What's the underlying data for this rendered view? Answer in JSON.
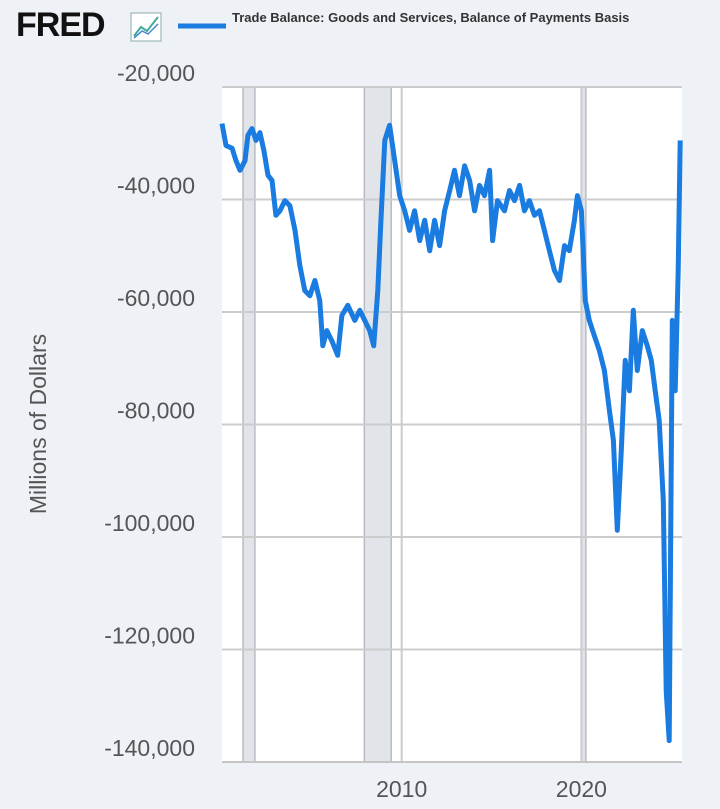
{
  "logo": "FRED",
  "chart_data": {
    "type": "line",
    "y_label": "Millions of Dollars",
    "series": [
      {
        "name": "Trade Balance: Goods and Services, Balance of Payments Basis",
        "color": "#1a7be0",
        "x": [
          2000.0,
          2000.22,
          2000.56,
          2000.78,
          2001.0,
          2001.28,
          2001.44,
          2001.67,
          2001.89,
          2002.11,
          2002.33,
          2002.56,
          2002.78,
          2003.0,
          2003.22,
          2003.5,
          2003.78,
          2004.06,
          2004.33,
          2004.61,
          2004.89,
          2005.17,
          2005.44,
          2005.61,
          2005.83,
          2006.11,
          2006.44,
          2006.67,
          2007.0,
          2007.39,
          2007.67,
          2007.94,
          2008.22,
          2008.44,
          2008.67,
          2008.83,
          2009.06,
          2009.33,
          2009.61,
          2009.89,
          2010.17,
          2010.44,
          2010.72,
          2011.0,
          2011.28,
          2011.56,
          2011.83,
          2012.11,
          2012.39,
          2012.67,
          2012.94,
          2013.22,
          2013.5,
          2013.78,
          2014.06,
          2014.33,
          2014.61,
          2014.89,
          2015.06,
          2015.33,
          2015.72,
          2016.0,
          2016.28,
          2016.56,
          2016.83,
          2017.11,
          2017.39,
          2017.67,
          2017.94,
          2018.22,
          2018.5,
          2018.78,
          2019.06,
          2019.33,
          2019.61,
          2019.78,
          2020.0,
          2020.22,
          2020.44,
          2020.72,
          2021.0,
          2021.28,
          2021.56,
          2021.78,
          2022.0,
          2022.22,
          2022.44,
          2022.67,
          2022.89,
          2023.11,
          2023.39,
          2023.67,
          2023.89,
          2024.11,
          2024.33,
          2024.56,
          2024.72,
          2024.89,
          2025.06,
          2025.22,
          2025.39,
          2025.5
        ],
        "values": [
          -26500,
          -30400,
          -30900,
          -33100,
          -34800,
          -33100,
          -28600,
          -27400,
          -29500,
          -28100,
          -31300,
          -35700,
          -36600,
          -42800,
          -42000,
          -40200,
          -41100,
          -45500,
          -51700,
          -56200,
          -57100,
          -54400,
          -58000,
          -66000,
          -63300,
          -65100,
          -67700,
          -60600,
          -58800,
          -61500,
          -59700,
          -61500,
          -63300,
          -66000,
          -56200,
          -44600,
          -29500,
          -26800,
          -33100,
          -39300,
          -42000,
          -45500,
          -42000,
          -47300,
          -43700,
          -49100,
          -43700,
          -48200,
          -42000,
          -38400,
          -34800,
          -39300,
          -34000,
          -36600,
          -42000,
          -37500,
          -39300,
          -34800,
          -47300,
          -40200,
          -42000,
          -38400,
          -40200,
          -37500,
          -42000,
          -40200,
          -42800,
          -42000,
          -45500,
          -49100,
          -52600,
          -54400,
          -48200,
          -49100,
          -43700,
          -39300,
          -42000,
          -58000,
          -61500,
          -64200,
          -66800,
          -70400,
          -77500,
          -82800,
          -98800,
          -84600,
          -68600,
          -74000,
          -59700,
          -70400,
          -63300,
          -66000,
          -68600,
          -74000,
          -79300,
          -93500,
          -127300,
          -136200,
          -61500,
          -74000,
          -52600,
          -29500
        ]
      }
    ],
    "recessions": [
      [
        2001.17,
        2001.83
      ],
      [
        2007.92,
        2009.42
      ],
      [
        2020.0,
        2020.25
      ]
    ],
    "xlim": [
      2000,
      2025.6
    ],
    "xticks": [
      2010,
      2020
    ],
    "ylim": [
      -140000,
      -20000
    ],
    "yticks": [
      {
        "value": -20000,
        "label": "-20,000"
      },
      {
        "value": -40000,
        "label": "-40,000"
      },
      {
        "value": -60000,
        "label": "-60,000"
      },
      {
        "value": -80000,
        "label": "-80,000"
      },
      {
        "value": -100000,
        "label": "-100,000"
      },
      {
        "value": -120000,
        "label": "-120,000"
      },
      {
        "value": -140000,
        "label": "-140,000"
      }
    ],
    "grid": true
  }
}
